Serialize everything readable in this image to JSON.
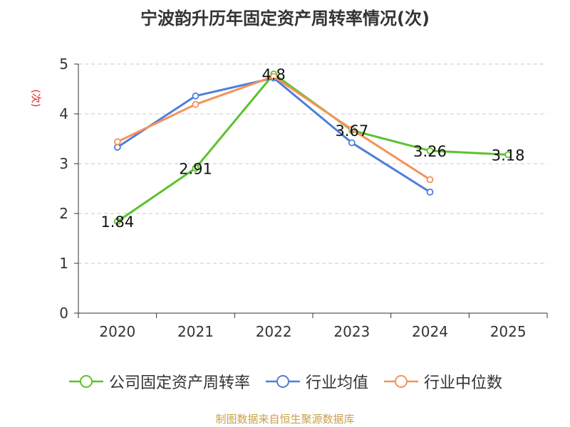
{
  "chart_data": {
    "type": "line",
    "title": "宁波韵升历年固定资产周转率情况(次)",
    "ylabel": "(次)",
    "xlabel": "",
    "categories": [
      "2020",
      "2021",
      "2022",
      "2023",
      "2024",
      "2025"
    ],
    "ylim": [
      0,
      5
    ],
    "yticks": [
      0,
      1,
      2,
      3,
      4,
      5
    ],
    "grid": true,
    "legend_position": "bottom",
    "series": [
      {
        "name": "公司固定资产周转率",
        "color": "#5cc22b",
        "values": [
          1.84,
          2.91,
          4.8,
          3.67,
          3.26,
          3.18
        ],
        "labels": [
          "1.84",
          "2.91",
          "4.8",
          "3.67",
          "3.26",
          "3.18"
        ]
      },
      {
        "name": "行业均值",
        "color": "#4e7fd9",
        "values": [
          3.33,
          4.36,
          4.72,
          3.42,
          2.43,
          null
        ]
      },
      {
        "name": "行业中位数",
        "color": "#f5925a",
        "values": [
          3.44,
          4.19,
          4.75,
          3.69,
          2.68,
          null
        ]
      }
    ]
  },
  "source": "制图数据来自恒生聚源数据库"
}
